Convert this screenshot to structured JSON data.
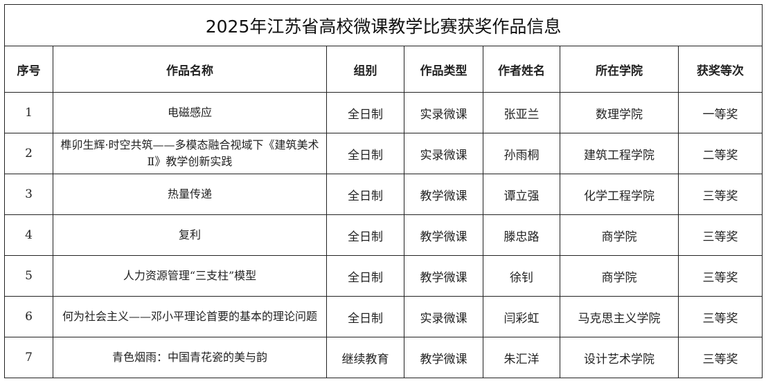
{
  "title": "2025年江苏省高校微课教学比赛获奖作品信息",
  "headers": [
    "序号",
    "作品名称",
    "组别",
    "作品类型",
    "作者姓名",
    "所在学院",
    "获奖等次"
  ],
  "rows": [
    [
      "1",
      "电磁感应",
      "全日制",
      "实录微课",
      "张亚兰",
      "数理学院",
      "一等奖"
    ],
    [
      "2",
      "榫卯生辉·时空共筑——多模态融合视域下《建筑美术Ⅱ》教学创新实践",
      "全日制",
      "实录微课",
      "孙雨桐",
      "建筑工程学院",
      "二等奖"
    ],
    [
      "3",
      "热量传递",
      "全日制",
      "教学微课",
      "谭立强",
      "化学工程学院",
      "三等奖"
    ],
    [
      "4",
      "复利",
      "全日制",
      "教学微课",
      "滕忠路",
      "商学院",
      "三等奖"
    ],
    [
      "5",
      "人力资源管理“三支柱”模型",
      "全日制",
      "教学微课",
      "徐钊",
      "商学院",
      "三等奖"
    ],
    [
      "6",
      "何为社会主义——邓小平理论首要的基本的理论问题",
      "全日制",
      "实录微课",
      "闫彩虹",
      "马克思主义学院",
      "三等奖"
    ],
    [
      "7",
      "青色烟雨：中国青花瓷的美与韵",
      "继续教育",
      "教学微课",
      "朱汇洋",
      "设计艺术学院",
      "三等奖"
    ]
  ]
}
